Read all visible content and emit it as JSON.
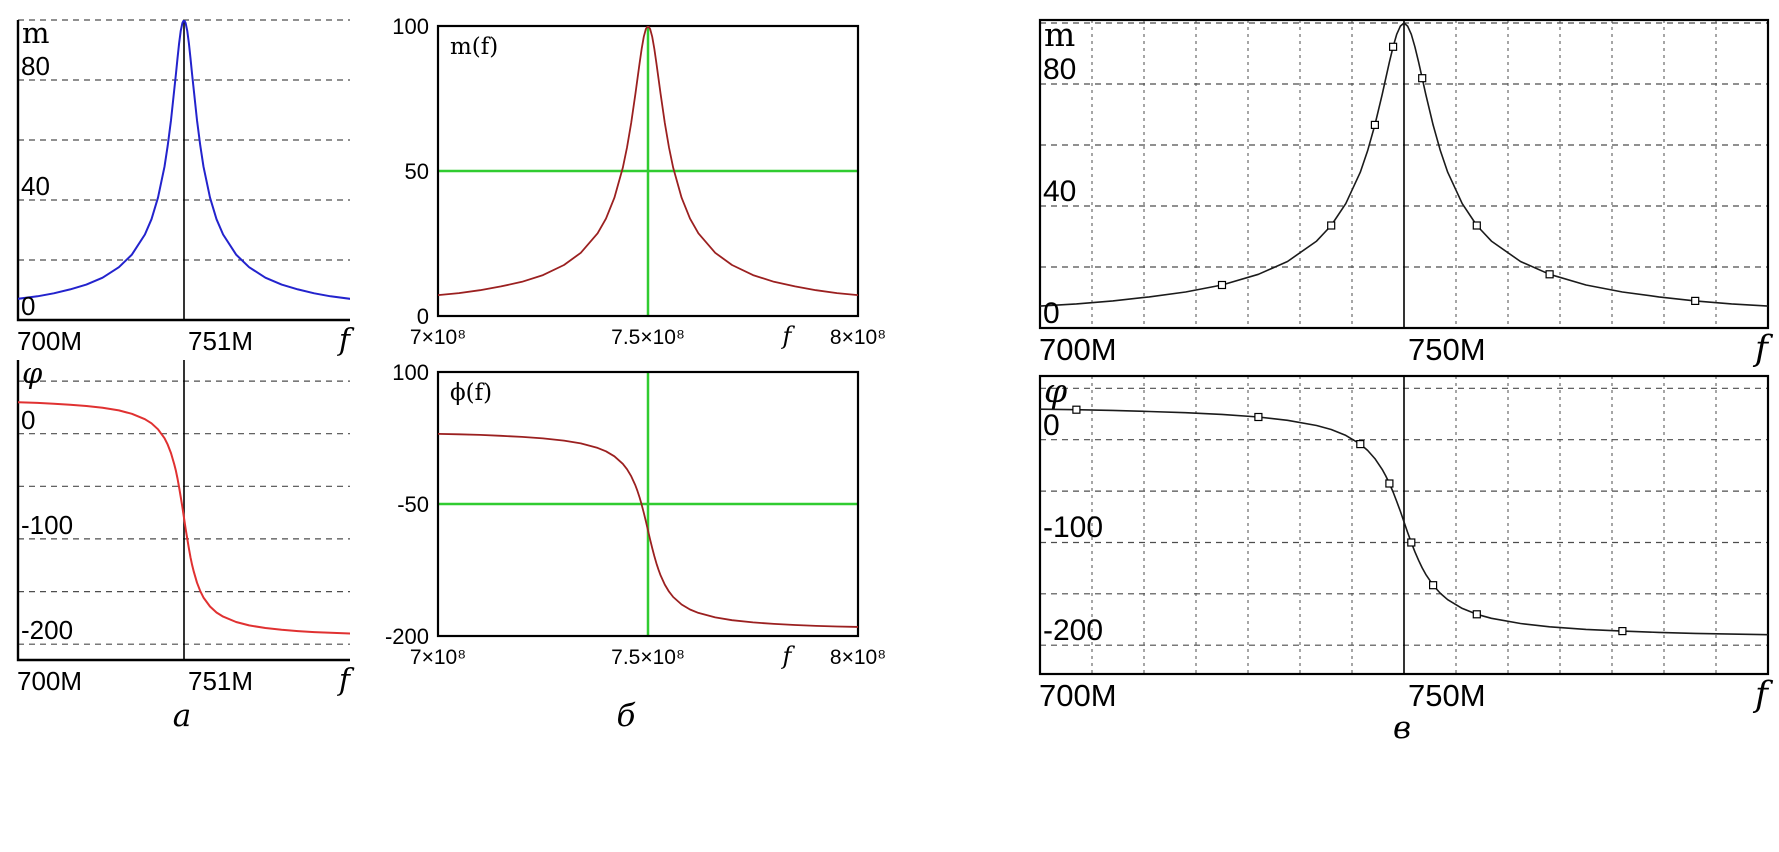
{
  "figure": {
    "background": "#ffffff",
    "captions": [
      {
        "panel": "a",
        "text": "а"
      },
      {
        "panel": "b",
        "text": "б"
      },
      {
        "panel": "v",
        "text": "в"
      }
    ]
  },
  "colors": {
    "axis": "#000000",
    "grid": "#4d4d4d",
    "magnitude_a": "#2323cd",
    "phase_a": "#e03131",
    "curve_b": "#9b2020",
    "crosshair_green": "#30cc30",
    "curve_v": "#1b1b1b",
    "marker_fill": "#ffffff"
  },
  "curves": {
    "x_unit": "MHz offset from resonance",
    "delta_mhz": [
      -55,
      -45,
      -40,
      -35,
      -30,
      -25,
      -20,
      -16,
      -12,
      -10,
      -8,
      -6,
      -5,
      -4,
      -3,
      -2.5,
      -2,
      -1.5,
      -1,
      -0.5,
      0,
      0.5,
      1,
      1.5,
      2,
      2.5,
      3,
      4,
      5,
      6,
      8,
      10,
      12,
      16,
      20,
      25,
      30,
      35,
      40,
      45,
      55
    ],
    "magnitude": [
      6.5,
      7.9,
      8.9,
      10.2,
      11.8,
      14.1,
      17.6,
      21.8,
      28.5,
      33.6,
      40.8,
      51.1,
      58.1,
      66.6,
      76.6,
      81.9,
      87.2,
      92.2,
      96.3,
      99.0,
      100,
      99.0,
      96.3,
      92.2,
      87.2,
      81.9,
      76.6,
      66.6,
      58.1,
      51.1,
      40.8,
      33.6,
      28.5,
      21.8,
      17.6,
      14.1,
      11.8,
      10.2,
      8.9,
      7.9,
      6.5
    ],
    "phase_deg": [
      30.2,
      29.2,
      28.5,
      27.5,
      26.3,
      24.6,
      22.1,
      18.9,
      13.8,
      9.9,
      4.2,
      -4.3,
      -10.4,
      -18.4,
      -28.9,
      -35.3,
      -42.6,
      -50.9,
      -60.0,
      -69.8,
      -80.0,
      -90.2,
      -100.0,
      -109.1,
      -117.4,
      -124.7,
      -131.1,
      -141.6,
      -149.6,
      -155.7,
      -164.2,
      -169.9,
      -173.8,
      -178.9,
      -182.1,
      -184.6,
      -186.3,
      -187.5,
      -188.5,
      -189.2,
      -190.2
    ]
  },
  "chart_data": [
    {
      "id": "a-magnitude",
      "panel": "a",
      "type": "line",
      "style": "a",
      "ylabel": "m",
      "xlim_mhz": [
        700,
        802
      ],
      "ylim": [
        0,
        100
      ],
      "f0_mhz": 751,
      "series": "magnitude",
      "color_key": "magnitude_a",
      "yticks": [
        {
          "v": 80,
          "t": "80"
        },
        {
          "v": 40,
          "t": "40"
        },
        {
          "v": 0,
          "t": "0"
        }
      ],
      "xticks": [
        {
          "v": 700,
          "t": "700M"
        },
        {
          "v": 751,
          "t": "751M"
        },
        {
          "v": 802,
          "t": "f",
          "f": true
        }
      ],
      "grid_y": [
        20,
        40,
        60,
        80,
        100
      ],
      "vline_mhz": 751
    },
    {
      "id": "a-phase",
      "panel": "a",
      "type": "line",
      "style": "a",
      "ylabel": "φ",
      "ylabel_italic": true,
      "xlim_mhz": [
        700,
        802
      ],
      "ylim": [
        -215,
        70
      ],
      "f0_mhz": 751,
      "series": "phase_deg",
      "color_key": "phase_a",
      "yticks": [
        {
          "v": 0,
          "t": "0"
        },
        {
          "v": -100,
          "t": "-100"
        },
        {
          "v": -200,
          "t": "-200"
        }
      ],
      "xticks": [
        {
          "v": 700,
          "t": "700M"
        },
        {
          "v": 751,
          "t": "751M"
        },
        {
          "v": 802,
          "t": "f",
          "f": true
        }
      ],
      "grid_y": [
        50,
        0,
        -50,
        -100,
        -150,
        -200
      ],
      "vline_mhz": 751
    },
    {
      "id": "b-magnitude",
      "panel": "b",
      "type": "line",
      "style": "b",
      "label_inside": "m(f)",
      "xlim_mhz": [
        700,
        800
      ],
      "ylim": [
        0,
        100
      ],
      "f0_mhz": 750,
      "series": "magnitude",
      "color_key": "curve_b",
      "yticks": [
        {
          "v": 100,
          "t": "100"
        },
        {
          "v": 50,
          "t": "50"
        },
        {
          "v": 0,
          "t": "0"
        }
      ],
      "xticks": [
        {
          "v": 700,
          "t": "7×10⁸"
        },
        {
          "v": 750,
          "t": "7.5×10⁸"
        },
        {
          "v": 783,
          "t": "f",
          "f": true
        },
        {
          "v": 800,
          "t": "8×10⁸"
        }
      ],
      "crosshair": {
        "x_mhz": 750,
        "y": 50
      }
    },
    {
      "id": "b-phase",
      "panel": "b",
      "type": "line",
      "style": "b",
      "label_inside": "ϕ(f)",
      "xlim_mhz": [
        700,
        800
      ],
      "ylim": [
        -200,
        100
      ],
      "f0_mhz": 750,
      "series": "phase_deg",
      "color_key": "curve_b",
      "yticks": [
        {
          "v": 100,
          "t": "100"
        },
        {
          "v": -50,
          "t": "-50"
        },
        {
          "v": -200,
          "t": "-200"
        }
      ],
      "xticks": [
        {
          "v": 700,
          "t": "7×10⁸"
        },
        {
          "v": 750,
          "t": "7.5×10⁸"
        },
        {
          "v": 783,
          "t": "f",
          "f": true
        },
        {
          "v": 800,
          "t": "8×10⁸"
        }
      ],
      "crosshair": {
        "x_mhz": 750,
        "y": -50
      }
    },
    {
      "id": "v-magnitude",
      "panel": "v",
      "type": "line",
      "style": "v",
      "ylabel": "m",
      "xlim_mhz": [
        700,
        800
      ],
      "ylim": [
        0,
        101
      ],
      "f0_mhz": 750,
      "series": "magnitude",
      "color_key": "curve_v",
      "yticks": [
        {
          "v": 80,
          "t": "80"
        },
        {
          "v": 40,
          "t": "40"
        },
        {
          "v": 0,
          "t": "0"
        }
      ],
      "xticks": [
        {
          "v": 700,
          "t": "700M"
        },
        {
          "v": 750,
          "t": "750M"
        },
        {
          "v": 800,
          "t": "f",
          "f": true
        }
      ],
      "grid_y": [
        20,
        40,
        60,
        80,
        100
      ],
      "grid_x_count": 14,
      "vline_mhz": 750,
      "marker_deltas": [
        -25,
        -10,
        -4,
        -1.5,
        2.5,
        10,
        20,
        40
      ]
    },
    {
      "id": "v-phase",
      "panel": "v",
      "type": "line",
      "style": "v",
      "ylabel": "φ",
      "ylabel_italic": true,
      "xlim_mhz": [
        700,
        800
      ],
      "ylim": [
        -228,
        62
      ],
      "f0_mhz": 750,
      "series": "phase_deg",
      "color_key": "curve_v",
      "yticks": [
        {
          "v": 0,
          "t": "0"
        },
        {
          "v": -100,
          "t": "-100"
        },
        {
          "v": -200,
          "t": "-200"
        }
      ],
      "xticks": [
        {
          "v": 700,
          "t": "700M"
        },
        {
          "v": 750,
          "t": "750M"
        },
        {
          "v": 800,
          "t": "f",
          "f": true
        }
      ],
      "grid_y": [
        50,
        0,
        -50,
        -100,
        -150,
        -200
      ],
      "grid_x_count": 14,
      "vline_mhz": 750,
      "marker_deltas": [
        -45,
        -20,
        -6,
        -2,
        1,
        4,
        10,
        30
      ]
    }
  ]
}
